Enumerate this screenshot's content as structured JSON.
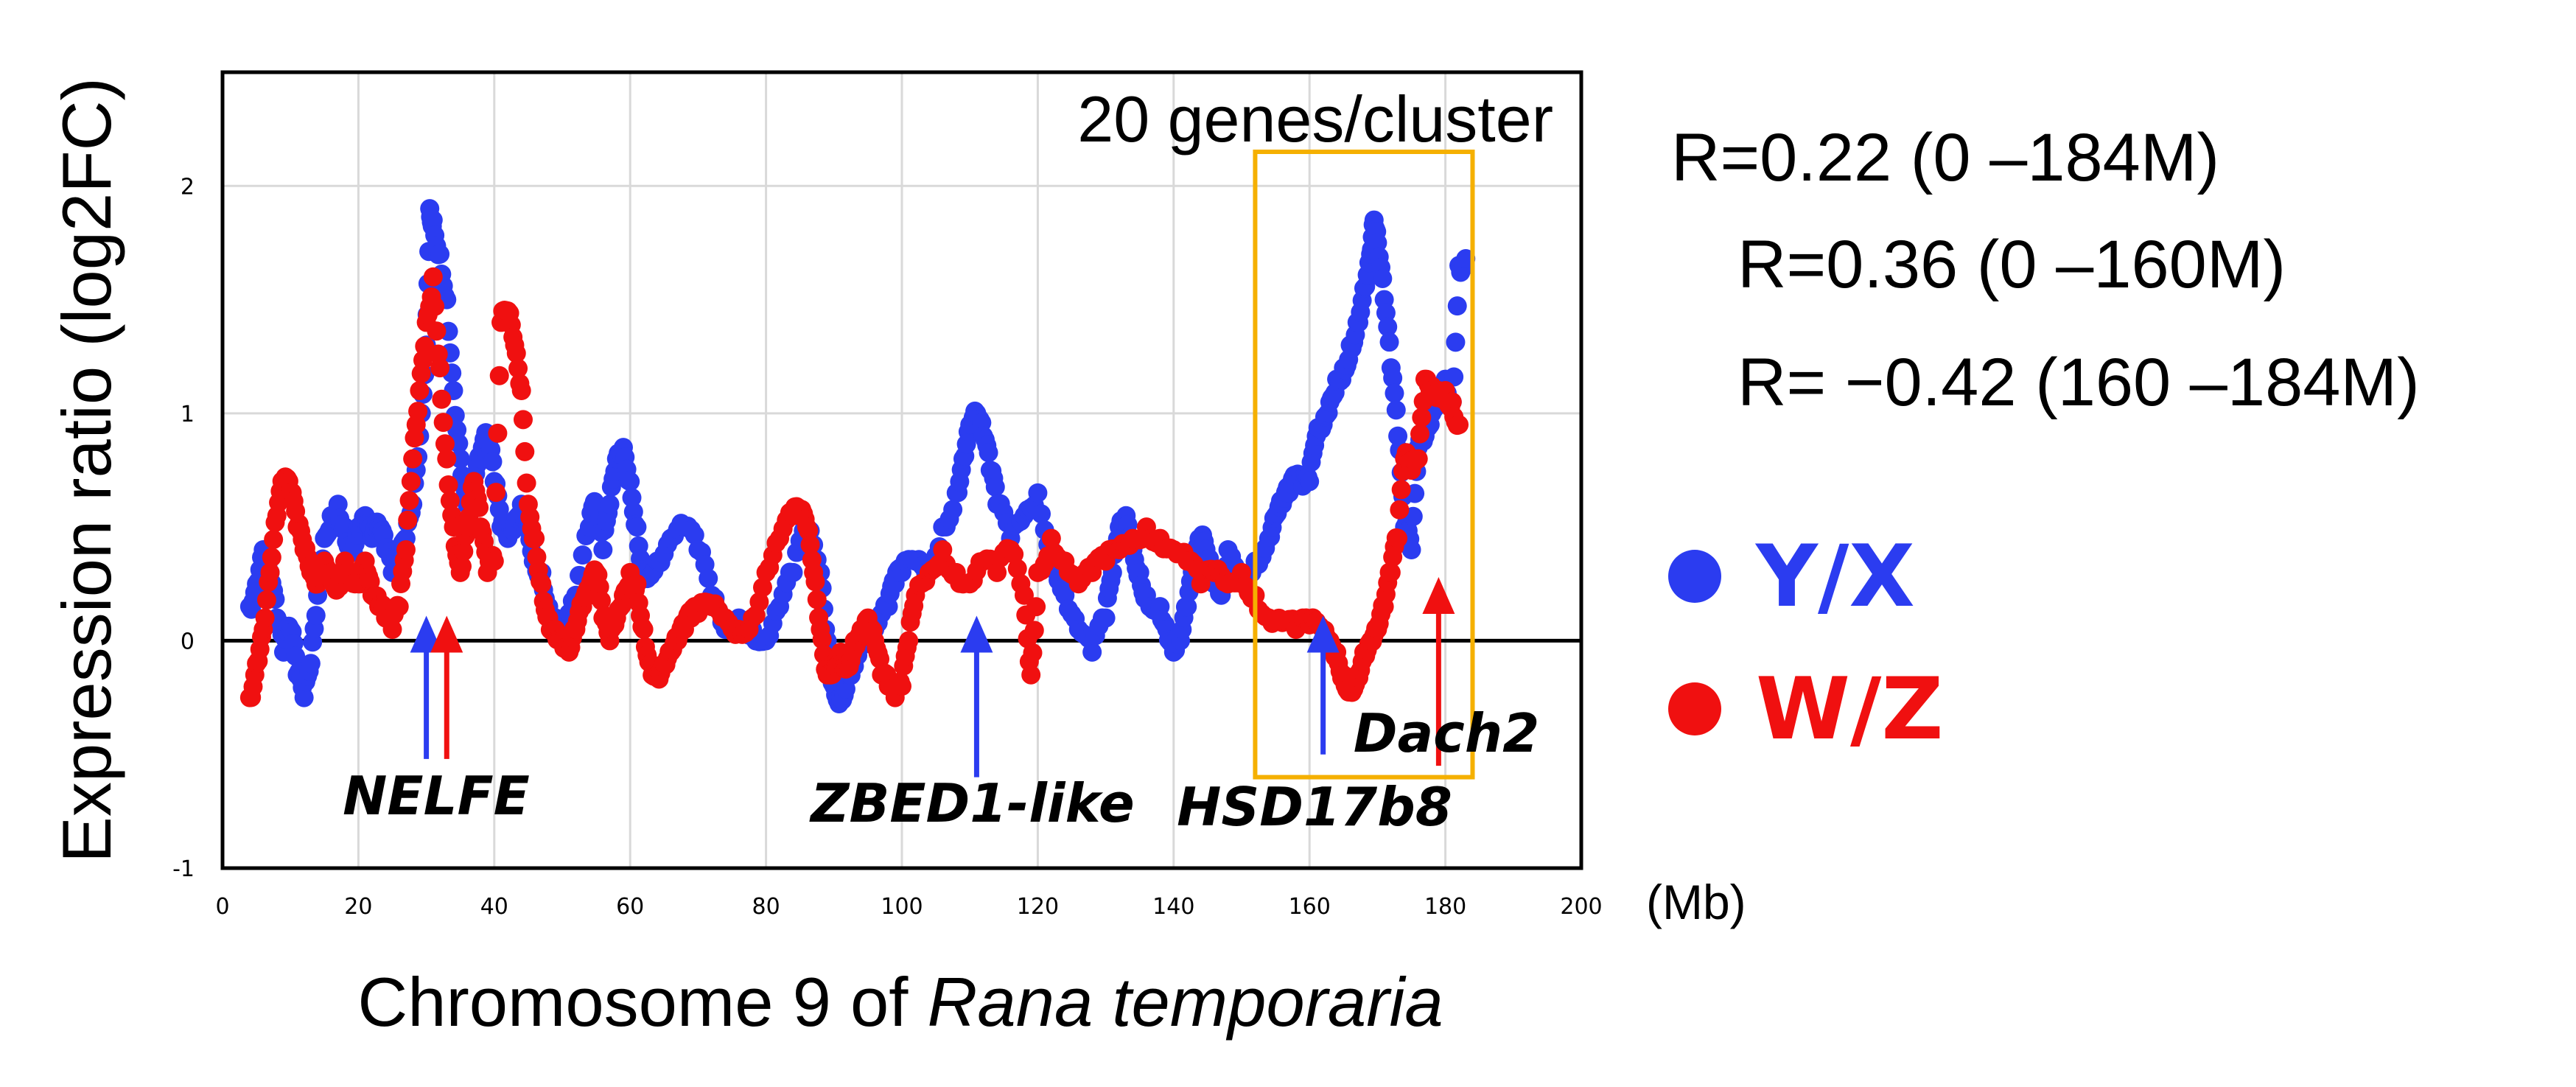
{
  "chart_data": {
    "type": "scatter",
    "title": "20 genes/cluster",
    "xlabel_prefix": "Chromosome 9 of ",
    "xlabel_species": "Rana temporaria",
    "ylabel": "Expression ratio (log2FC)",
    "x_unit": "(Mb)",
    "xlim": [
      0,
      200
    ],
    "ylim": [
      -1,
      2.5
    ],
    "x_ticks": [
      "0",
      "20",
      "40",
      "60",
      "80",
      "100",
      "120",
      "140",
      "160",
      "180",
      "200"
    ],
    "x_tick_values": [
      0,
      20,
      40,
      60,
      80,
      100,
      120,
      140,
      160,
      180,
      200
    ],
    "y_ticks": [
      "-1",
      "0",
      "1",
      "2"
    ],
    "y_tick_values": [
      -1,
      0,
      1,
      2
    ],
    "grid": true,
    "zero_line": true,
    "series": [
      {
        "name": "Y/X",
        "color": "#2b3cf0",
        "points": [
          [
            4,
            0.15
          ],
          [
            5,
            0.25
          ],
          [
            6,
            0.4
          ],
          [
            7,
            0.3
          ],
          [
            8,
            0.1
          ],
          [
            9,
            -0.05
          ],
          [
            10,
            0.05
          ],
          [
            11,
            -0.15
          ],
          [
            12,
            -0.25
          ],
          [
            13,
            -0.1
          ],
          [
            14,
            0.2
          ],
          [
            15,
            0.45
          ],
          [
            16,
            0.55
          ],
          [
            17,
            0.6
          ],
          [
            18,
            0.5
          ],
          [
            19,
            0.4
          ],
          [
            20,
            0.5
          ],
          [
            21,
            0.55
          ],
          [
            22,
            0.45
          ],
          [
            23,
            0.5
          ],
          [
            24,
            0.4
          ],
          [
            25,
            0.3
          ],
          [
            26,
            0.35
          ],
          [
            27,
            0.45
          ],
          [
            28,
            0.6
          ],
          [
            29,
            0.9
          ],
          [
            30,
            1.3
          ],
          [
            30.5,
            1.9
          ],
          [
            31,
            1.85
          ],
          [
            32,
            1.7
          ],
          [
            33,
            1.5
          ],
          [
            34,
            1.1
          ],
          [
            35,
            0.8
          ],
          [
            36,
            0.6
          ],
          [
            37,
            0.7
          ],
          [
            38,
            0.8
          ],
          [
            39,
            0.9
          ],
          [
            40,
            0.7
          ],
          [
            41,
            0.5
          ],
          [
            42,
            0.45
          ],
          [
            43,
            0.5
          ],
          [
            44,
            0.6
          ],
          [
            45,
            0.5
          ],
          [
            46,
            0.35
          ],
          [
            47,
            0.3
          ],
          [
            48,
            0.15
          ],
          [
            49,
            0.1
          ],
          [
            50,
            0.05
          ],
          [
            52,
            0.2
          ],
          [
            54,
            0.5
          ],
          [
            55,
            0.6
          ],
          [
            56,
            0.4
          ],
          [
            57,
            0.6
          ],
          [
            58,
            0.8
          ],
          [
            59,
            0.85
          ],
          [
            60,
            0.7
          ],
          [
            61,
            0.5
          ],
          [
            62,
            0.3
          ],
          [
            64,
            0.35
          ],
          [
            66,
            0.45
          ],
          [
            68,
            0.5
          ],
          [
            70,
            0.4
          ],
          [
            72,
            0.2
          ],
          [
            74,
            0.05
          ],
          [
            76,
            0.1
          ],
          [
            78,
            0.05
          ],
          [
            80,
            0.0
          ],
          [
            82,
            0.15
          ],
          [
            84,
            0.3
          ],
          [
            86,
            0.5
          ],
          [
            88,
            0.3
          ],
          [
            89,
            0.0
          ],
          [
            90,
            -0.2
          ],
          [
            91,
            -0.25
          ],
          [
            92,
            -0.15
          ],
          [
            94,
            0.0
          ],
          [
            96,
            0.05
          ],
          [
            98,
            0.15
          ],
          [
            99,
            0.25
          ],
          [
            100,
            0.3
          ],
          [
            102,
            0.35
          ],
          [
            104,
            0.3
          ],
          [
            106,
            0.5
          ],
          [
            108,
            0.65
          ],
          [
            109,
            0.8
          ],
          [
            110,
            0.95
          ],
          [
            111,
            1.0
          ],
          [
            112,
            0.9
          ],
          [
            113,
            0.75
          ],
          [
            114,
            0.6
          ],
          [
            116,
            0.45
          ],
          [
            118,
            0.55
          ],
          [
            120,
            0.65
          ],
          [
            122,
            0.4
          ],
          [
            124,
            0.2
          ],
          [
            126,
            0.05
          ],
          [
            128,
            -0.05
          ],
          [
            130,
            0.1
          ],
          [
            131,
            0.3
          ],
          [
            132,
            0.5
          ],
          [
            133,
            0.55
          ],
          [
            134,
            0.4
          ],
          [
            135,
            0.3
          ],
          [
            136,
            0.2
          ],
          [
            138,
            0.15
          ],
          [
            139,
            0.05
          ],
          [
            140,
            -0.05
          ],
          [
            141,
            0.0
          ],
          [
            142,
            0.15
          ],
          [
            143,
            0.3
          ],
          [
            144,
            0.45
          ],
          [
            145,
            0.35
          ],
          [
            146,
            0.25
          ],
          [
            147,
            0.2
          ],
          [
            148,
            0.4
          ],
          [
            150,
            0.3
          ],
          [
            152,
            0.35
          ],
          [
            154,
            0.45
          ],
          [
            155,
            0.55
          ],
          [
            156,
            0.6
          ],
          [
            157,
            0.65
          ],
          [
            158,
            0.7
          ],
          [
            159,
            0.68
          ],
          [
            160,
            0.7
          ],
          [
            161,
            0.9
          ],
          [
            162,
            0.95
          ],
          [
            163,
            1.05
          ],
          [
            164,
            1.15
          ],
          [
            165,
            1.2
          ],
          [
            166,
            1.3
          ],
          [
            167,
            1.4
          ],
          [
            168,
            1.55
          ],
          [
            169,
            1.7
          ],
          [
            169.5,
            1.85
          ],
          [
            170,
            1.75
          ],
          [
            171,
            1.5
          ],
          [
            172,
            1.2
          ],
          [
            173,
            0.9
          ],
          [
            174,
            0.5
          ],
          [
            175,
            0.4
          ],
          [
            176,
            0.85
          ],
          [
            177,
            0.9
          ],
          [
            178,
            1.0
          ],
          [
            179,
            1.1
          ],
          [
            180,
            1.15
          ],
          [
            181,
            1.05
          ],
          [
            182,
            1.65
          ],
          [
            183,
            1.68
          ]
        ]
      },
      {
        "name": "W/Z",
        "color": "#f01010",
        "points": [
          [
            4,
            -0.25
          ],
          [
            5,
            -0.1
          ],
          [
            6,
            0.05
          ],
          [
            7,
            0.3
          ],
          [
            8,
            0.55
          ],
          [
            9,
            0.7
          ],
          [
            10,
            0.65
          ],
          [
            11,
            0.5
          ],
          [
            12,
            0.4
          ],
          [
            13,
            0.3
          ],
          [
            14,
            0.25
          ],
          [
            15,
            0.35
          ],
          [
            16,
            0.3
          ],
          [
            17,
            0.25
          ],
          [
            18,
            0.35
          ],
          [
            19,
            0.3
          ],
          [
            20,
            0.25
          ],
          [
            21,
            0.35
          ],
          [
            22,
            0.2
          ],
          [
            23,
            0.15
          ],
          [
            24,
            0.1
          ],
          [
            25,
            0.05
          ],
          [
            26,
            0.15
          ],
          [
            27,
            0.4
          ],
          [
            28,
            0.8
          ],
          [
            29,
            1.1
          ],
          [
            30,
            1.4
          ],
          [
            31,
            1.6
          ],
          [
            32,
            1.2
          ],
          [
            33,
            0.8
          ],
          [
            34,
            0.5
          ],
          [
            35,
            0.3
          ],
          [
            36,
            0.5
          ],
          [
            37,
            0.7
          ],
          [
            38,
            0.5
          ],
          [
            39,
            0.3
          ],
          [
            40,
            0.35
          ],
          [
            41,
            1.4
          ],
          [
            42,
            1.45
          ],
          [
            43,
            1.3
          ],
          [
            44,
            1.1
          ],
          [
            45,
            0.6
          ],
          [
            46,
            0.45
          ],
          [
            47,
            0.25
          ],
          [
            48,
            0.1
          ],
          [
            49,
            0.05
          ],
          [
            50,
            0.0
          ],
          [
            51,
            -0.05
          ],
          [
            52,
            0.05
          ],
          [
            53,
            0.15
          ],
          [
            54,
            0.2
          ],
          [
            55,
            0.3
          ],
          [
            56,
            0.1
          ],
          [
            57,
            0.0
          ],
          [
            58,
            0.1
          ],
          [
            59,
            0.2
          ],
          [
            60,
            0.3
          ],
          [
            61,
            0.25
          ],
          [
            62,
            0.05
          ],
          [
            63,
            -0.1
          ],
          [
            64,
            -0.15
          ],
          [
            65,
            -0.1
          ],
          [
            66,
            -0.05
          ],
          [
            67,
            0.0
          ],
          [
            68,
            0.05
          ],
          [
            69,
            0.1
          ],
          [
            70,
            0.12
          ],
          [
            72,
            0.15
          ],
          [
            74,
            0.1
          ],
          [
            76,
            0.05
          ],
          [
            78,
            0.1
          ],
          [
            80,
            0.3
          ],
          [
            82,
            0.45
          ],
          [
            84,
            0.55
          ],
          [
            85,
            0.55
          ],
          [
            86,
            0.5
          ],
          [
            87,
            0.3
          ],
          [
            88,
            0.05
          ],
          [
            89,
            -0.15
          ],
          [
            90,
            -0.1
          ],
          [
            91,
            -0.05
          ],
          [
            92,
            -0.1
          ],
          [
            93,
            0.0
          ],
          [
            94,
            0.05
          ],
          [
            95,
            0.1
          ],
          [
            96,
            0.0
          ],
          [
            97,
            -0.15
          ],
          [
            98,
            -0.2
          ],
          [
            99,
            -0.25
          ],
          [
            100,
            -0.2
          ],
          [
            101,
            0.0
          ],
          [
            102,
            0.2
          ],
          [
            104,
            0.3
          ],
          [
            106,
            0.4
          ],
          [
            108,
            0.3
          ],
          [
            110,
            0.25
          ],
          [
            112,
            0.35
          ],
          [
            114,
            0.3
          ],
          [
            116,
            0.4
          ],
          [
            118,
            0.2
          ],
          [
            119,
            -0.15
          ],
          [
            120,
            0.3
          ],
          [
            122,
            0.45
          ],
          [
            124,
            0.35
          ],
          [
            126,
            0.25
          ],
          [
            128,
            0.3
          ],
          [
            130,
            0.35
          ],
          [
            132,
            0.4
          ],
          [
            134,
            0.45
          ],
          [
            136,
            0.5
          ],
          [
            138,
            0.45
          ],
          [
            140,
            0.4
          ],
          [
            142,
            0.35
          ],
          [
            144,
            0.25
          ],
          [
            146,
            0.3
          ],
          [
            148,
            0.25
          ],
          [
            150,
            0.3
          ],
          [
            152,
            0.2
          ],
          [
            154,
            0.1
          ],
          [
            156,
            0.08
          ],
          [
            158,
            0.05
          ],
          [
            160,
            0.07
          ],
          [
            162,
            0.05
          ],
          [
            163,
            0.0
          ],
          [
            164,
            -0.05
          ],
          [
            165,
            -0.15
          ],
          [
            166,
            -0.2
          ],
          [
            167,
            -0.15
          ],
          [
            168,
            -0.05
          ],
          [
            169,
            0.0
          ],
          [
            170,
            0.05
          ],
          [
            171,
            0.15
          ],
          [
            172,
            0.3
          ],
          [
            173,
            0.45
          ],
          [
            174,
            0.8
          ],
          [
            175,
            0.75
          ],
          [
            176,
            0.8
          ],
          [
            177,
            1.15
          ],
          [
            178,
            1.12
          ],
          [
            179,
            1.1
          ],
          [
            180,
            1.1
          ],
          [
            181,
            1.05
          ],
          [
            182,
            0.95
          ]
        ]
      }
    ],
    "annotations": [
      {
        "label": "NELFE",
        "arrows": [
          {
            "x": 30,
            "series": "Y/X"
          },
          {
            "x": 33,
            "series": "W/Z"
          }
        ]
      },
      {
        "label": "ZBED1-like",
        "arrows": [
          {
            "x": 111,
            "series": "Y/X"
          }
        ]
      },
      {
        "label": "HSD17b8",
        "arrows": [
          {
            "x": 162,
            "series": "Y/X"
          }
        ]
      },
      {
        "label": "Dach2",
        "arrows": [
          {
            "x": 179,
            "series": "W/Z"
          }
        ]
      }
    ],
    "highlight_region": {
      "x_range": [
        152,
        184
      ],
      "y_range": [
        -0.6,
        2.15
      ],
      "color": "#f5b000"
    },
    "correlations": [
      "R=0.22 (0 –184M)",
      "R=0.36 (0 –160M)",
      "R= −0.42 (160 –184M)"
    ],
    "legend": [
      {
        "label": "Y/X",
        "color": "#2b3cf0"
      },
      {
        "label": "W/Z",
        "color": "#f01010"
      }
    ]
  }
}
